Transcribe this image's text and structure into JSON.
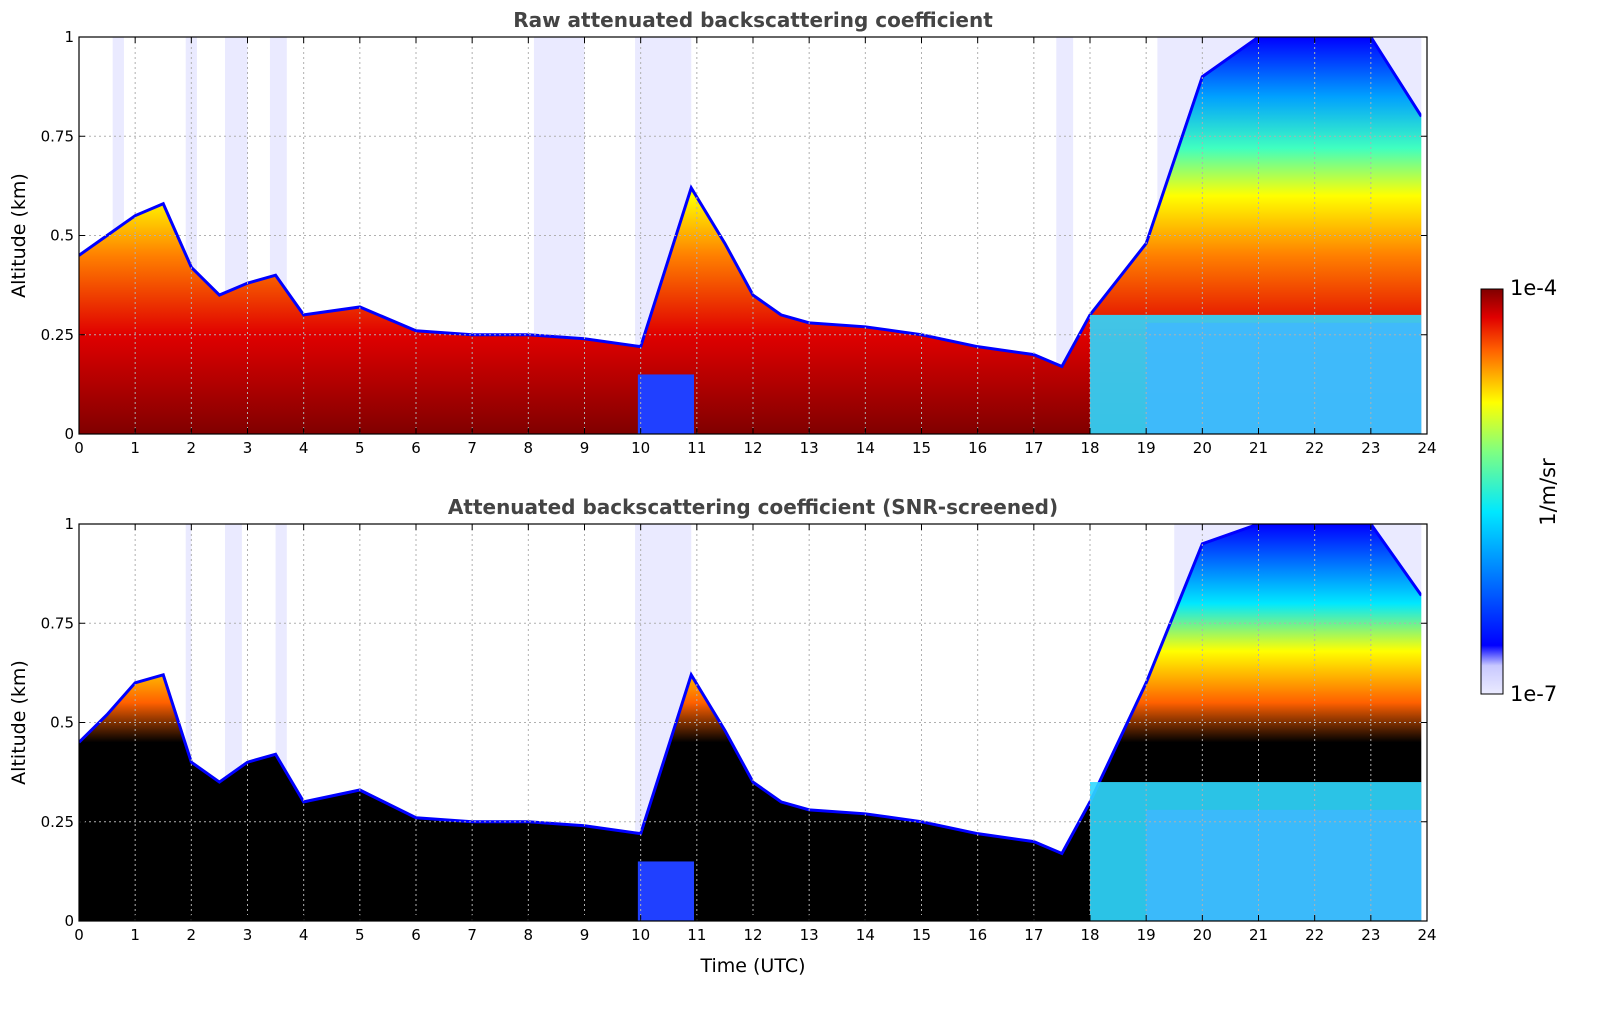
{
  "chart_data": [
    {
      "type": "heatmap",
      "title": "Raw attenuated backscattering coefficient",
      "xlabel": "",
      "ylabel": "Altitude (km)",
      "xlim": [
        0,
        24
      ],
      "ylim": [
        0,
        1
      ],
      "x_ticks": [
        "0",
        "1",
        "2",
        "3",
        "4",
        "5",
        "6",
        "7",
        "8",
        "9",
        "10",
        "11",
        "12",
        "13",
        "14",
        "15",
        "16",
        "17",
        "18",
        "19",
        "20",
        "21",
        "22",
        "23",
        "24"
      ],
      "y_ticks": [
        "0",
        "0.25",
        "0.5",
        "0.75",
        "1"
      ],
      "grid": true,
      "boundary_layer_top_km": {
        "x": [
          0,
          0.5,
          1,
          1.5,
          2,
          2.5,
          3,
          3.5,
          4,
          5,
          6,
          7,
          8,
          9,
          10,
          10.9,
          11.5,
          12,
          12.5,
          13,
          14,
          15,
          16,
          17,
          17.5,
          18,
          19,
          20,
          21,
          22,
          23,
          23.9
        ],
        "y": [
          0.45,
          0.5,
          0.55,
          0.58,
          0.42,
          0.35,
          0.38,
          0.4,
          0.3,
          0.32,
          0.26,
          0.25,
          0.25,
          0.24,
          0.22,
          0.62,
          0.48,
          0.35,
          0.3,
          0.28,
          0.27,
          0.25,
          0.22,
          0.2,
          0.17,
          0.3,
          0.48,
          0.9,
          1.0,
          1.0,
          1.0,
          0.8
        ]
      },
      "colorbar": {
        "min_label": "1e-7",
        "max_label": "1e-4",
        "unit": "1/m/sr",
        "scale": "log"
      }
    },
    {
      "type": "heatmap",
      "title": "Attenuated backscattering coefficient (SNR-screened)",
      "xlabel": "Time (UTC)",
      "ylabel": "Altitude (km)",
      "xlim": [
        0,
        24
      ],
      "ylim": [
        0,
        1
      ],
      "x_ticks": [
        "0",
        "1",
        "2",
        "3",
        "4",
        "5",
        "6",
        "7",
        "8",
        "9",
        "10",
        "11",
        "12",
        "13",
        "14",
        "15",
        "16",
        "17",
        "18",
        "19",
        "20",
        "21",
        "22",
        "23",
        "24"
      ],
      "y_ticks": [
        "0",
        "0.25",
        "0.5",
        "0.75",
        "1"
      ],
      "grid": true,
      "boundary_layer_top_km": {
        "x": [
          0,
          0.5,
          1,
          1.5,
          2,
          2.5,
          3,
          3.5,
          4,
          5,
          6,
          7,
          8,
          9,
          10,
          10.9,
          11.5,
          12,
          12.5,
          13,
          14,
          15,
          16,
          17,
          17.5,
          18,
          19,
          20,
          21,
          22,
          23,
          23.9
        ],
        "y": [
          0.45,
          0.52,
          0.6,
          0.62,
          0.4,
          0.35,
          0.4,
          0.42,
          0.3,
          0.33,
          0.26,
          0.25,
          0.25,
          0.24,
          0.22,
          0.62,
          0.48,
          0.35,
          0.3,
          0.28,
          0.27,
          0.25,
          0.22,
          0.2,
          0.17,
          0.3,
          0.6,
          0.95,
          1.0,
          1.0,
          1.0,
          0.82
        ]
      },
      "colorbar": {
        "min_label": "1e-7",
        "max_label": "1e-4",
        "unit": "1/m/sr",
        "scale": "log"
      }
    }
  ]
}
